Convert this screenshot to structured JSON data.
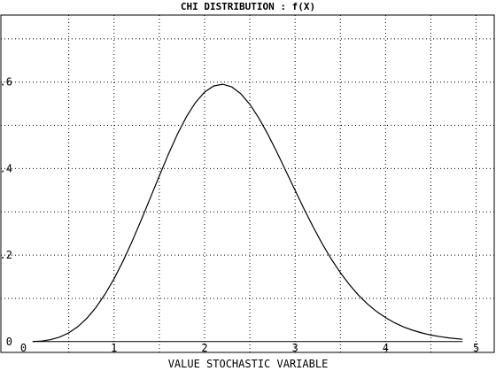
{
  "chart_data": {
    "type": "line",
    "title": "CHI DISTRIBUTION : f(X)",
    "xlabel": "VALUE STOCHASTIC VARIABLE",
    "ylabel": "",
    "xlim": [
      -0.25,
      5.2
    ],
    "ylim": [
      -0.025,
      0.755
    ],
    "x_ticks": [
      0,
      1,
      2,
      3,
      4,
      5
    ],
    "x_tick_labels": [
      "0",
      "1",
      "2",
      "3",
      "4",
      "5"
    ],
    "y_ticks": [
      0,
      0.2,
      0.4,
      0.6
    ],
    "y_tick_labels": [
      "0",
      ".2",
      ".4",
      ".6"
    ],
    "x_grid": [
      0.5,
      1,
      1.5,
      2,
      2.5,
      3,
      3.5,
      4,
      4.5,
      5
    ],
    "y_grid": [
      0.1,
      0.2,
      0.3,
      0.4,
      0.5,
      0.6,
      0.7
    ],
    "grid": true,
    "baseline": {
      "y": 0,
      "x_range": [
        0.1,
        4.85
      ]
    },
    "series": [
      {
        "x": [
          0.1,
          0.2,
          0.3,
          0.4,
          0.5,
          0.6,
          0.7,
          0.8,
          0.9,
          1.0,
          1.1,
          1.2,
          1.3,
          1.4,
          1.5,
          1.6,
          1.7,
          1.8,
          1.9,
          2.0,
          2.1,
          2.2,
          2.3,
          2.4,
          2.5,
          2.6,
          2.7,
          2.8,
          2.9,
          3.0,
          3.1,
          3.2,
          3.3,
          3.4,
          3.5,
          3.6,
          3.7,
          3.8,
          3.9,
          4.0,
          4.1,
          4.2,
          4.3,
          4.4,
          4.5,
          4.6,
          4.7,
          4.85
        ],
        "y": [
          0.0002,
          0.0013,
          0.0045,
          0.0105,
          0.0202,
          0.0345,
          0.054,
          0.0789,
          0.1093,
          0.1453,
          0.1864,
          0.2319,
          0.2808,
          0.3318,
          0.3833,
          0.4331,
          0.4794,
          0.5199,
          0.5528,
          0.5768,
          0.5911,
          0.5951,
          0.589,
          0.5732,
          0.5486,
          0.5167,
          0.4791,
          0.4376,
          0.3939,
          0.3497,
          0.3063,
          0.2649,
          0.2262,
          0.1909,
          0.1593,
          0.1316,
          0.1075,
          0.0869,
          0.0696,
          0.0552,
          0.0434,
          0.0338,
          0.0261,
          0.02,
          0.0152,
          0.0114,
          0.0085,
          0.0054
        ]
      }
    ]
  }
}
